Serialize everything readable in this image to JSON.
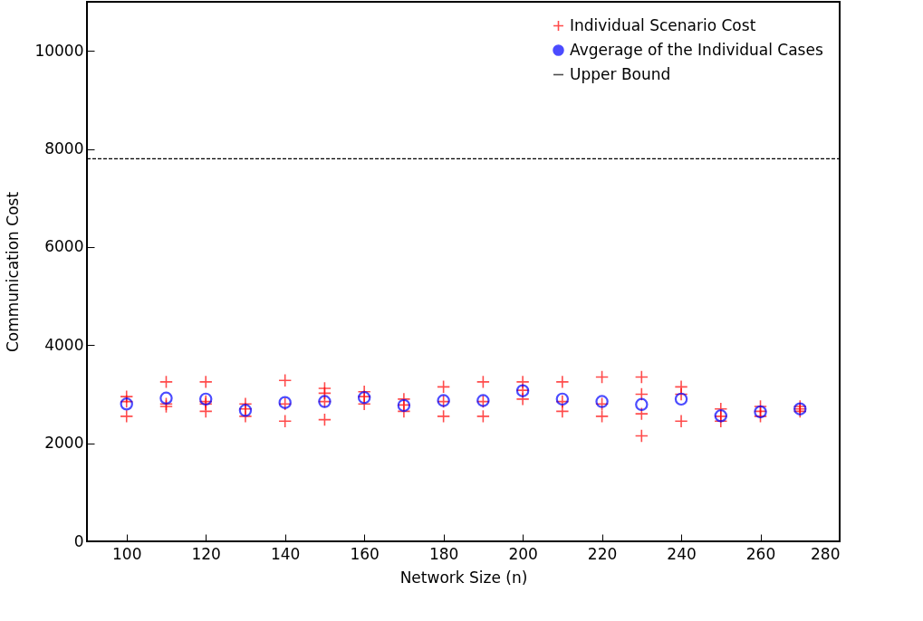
{
  "chart_data": {
    "type": "scatter",
    "xlabel": "Network Size (n)",
    "ylabel": "Communication Cost",
    "xlim": [
      90,
      280
    ],
    "xticks": [
      100,
      120,
      140,
      160,
      180,
      200,
      220,
      240,
      260,
      280
    ],
    "ylim": [
      0,
      11000
    ],
    "yticks": [
      0,
      2000,
      4000,
      6000,
      8000,
      10000
    ],
    "grid": false,
    "legend": "top right",
    "series": [
      {
        "name": "Individual Scenario Cost",
        "color": "#ff0000",
        "marker": "cross",
        "x": [
          100,
          100,
          100,
          110,
          110,
          110,
          120,
          120,
          120,
          120,
          130,
          130,
          130,
          140,
          140,
          140,
          150,
          150,
          150,
          150,
          160,
          160,
          160,
          170,
          170,
          170,
          180,
          180,
          180,
          190,
          190,
          190,
          200,
          200,
          200,
          210,
          210,
          210,
          220,
          220,
          220,
          230,
          230,
          230,
          230,
          240,
          240,
          240,
          250,
          250,
          250,
          260,
          260,
          260,
          270,
          270,
          270
        ],
        "values": [
          2950,
          2850,
          2550,
          3250,
          2800,
          2750,
          3250,
          2850,
          2800,
          2650,
          2800,
          2700,
          2550,
          3280,
          2800,
          2450,
          3120,
          3020,
          2850,
          2480,
          3050,
          2950,
          2800,
          2900,
          2780,
          2650,
          3150,
          2850,
          2550,
          3250,
          2850,
          2550,
          3250,
          3080,
          2900,
          3250,
          2850,
          2650,
          3350,
          2800,
          2550,
          3350,
          3000,
          2600,
          2150,
          3150,
          3000,
          2450,
          2700,
          2550,
          2450,
          2750,
          2650,
          2550,
          2750,
          2700,
          2650
        ]
      },
      {
        "name": "Avgerage of the Individual Cases",
        "color": "#0000ff",
        "marker": "circle",
        "x": [
          100,
          110,
          120,
          130,
          140,
          150,
          160,
          170,
          180,
          190,
          200,
          210,
          220,
          230,
          240,
          250,
          260,
          270
        ],
        "values": [
          2800,
          2920,
          2900,
          2670,
          2830,
          2850,
          2930,
          2770,
          2870,
          2870,
          3070,
          2900,
          2850,
          2790,
          2900,
          2560,
          2640,
          2700
        ]
      },
      {
        "name": "Upper Bound",
        "type": "line",
        "color": "#000000",
        "line_style": "dashed",
        "marker": "none",
        "x": [
          90,
          280
        ],
        "values": [
          7800,
          7800
        ]
      }
    ]
  }
}
